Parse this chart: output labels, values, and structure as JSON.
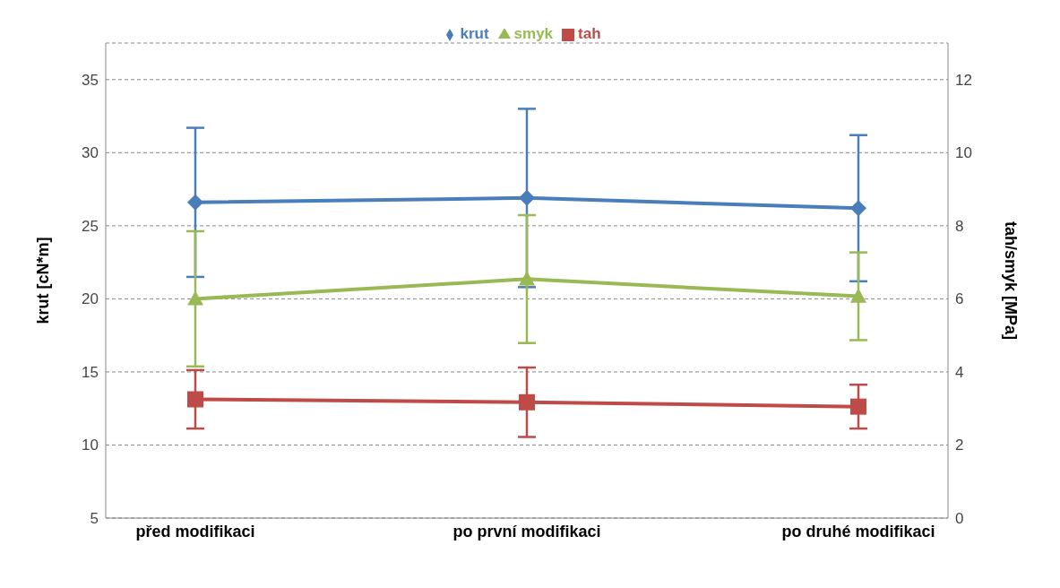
{
  "chart_data": {
    "type": "line",
    "categories": [
      "před modifikaci",
      "po první modifikaci",
      "po druhé modifikaci"
    ],
    "ylabel": "krut [cN*m]",
    "y2label": "tah/smyk [MPa]",
    "ylim": [
      5,
      37.5
    ],
    "yticks": [
      5,
      10,
      15,
      20,
      25,
      30,
      35
    ],
    "y2lim": [
      0,
      13
    ],
    "y2ticks": [
      0,
      2,
      4,
      6,
      8,
      10,
      12
    ],
    "grid": "y",
    "legend": "top",
    "series": [
      {
        "name": "krut",
        "color": "#4a7ebb",
        "marker": "diamond",
        "values": [
          26.6,
          26.9,
          26.2
        ],
        "errors": [
          5.1,
          6.1,
          5.0
        ]
      },
      {
        "name": "tah",
        "color": "#be4b48",
        "marker": "square",
        "axis": "y2",
        "values": [
          3.25,
          3.17,
          3.05
        ],
        "errors": [
          0.8,
          0.95,
          0.6
        ]
      },
      {
        "name": "smyk",
        "color": "#98b954",
        "marker": "triangle",
        "axis": "y2",
        "values": [
          6.0,
          6.54,
          6.07
        ],
        "errors": [
          1.85,
          1.75,
          1.2
        ]
      }
    ]
  }
}
